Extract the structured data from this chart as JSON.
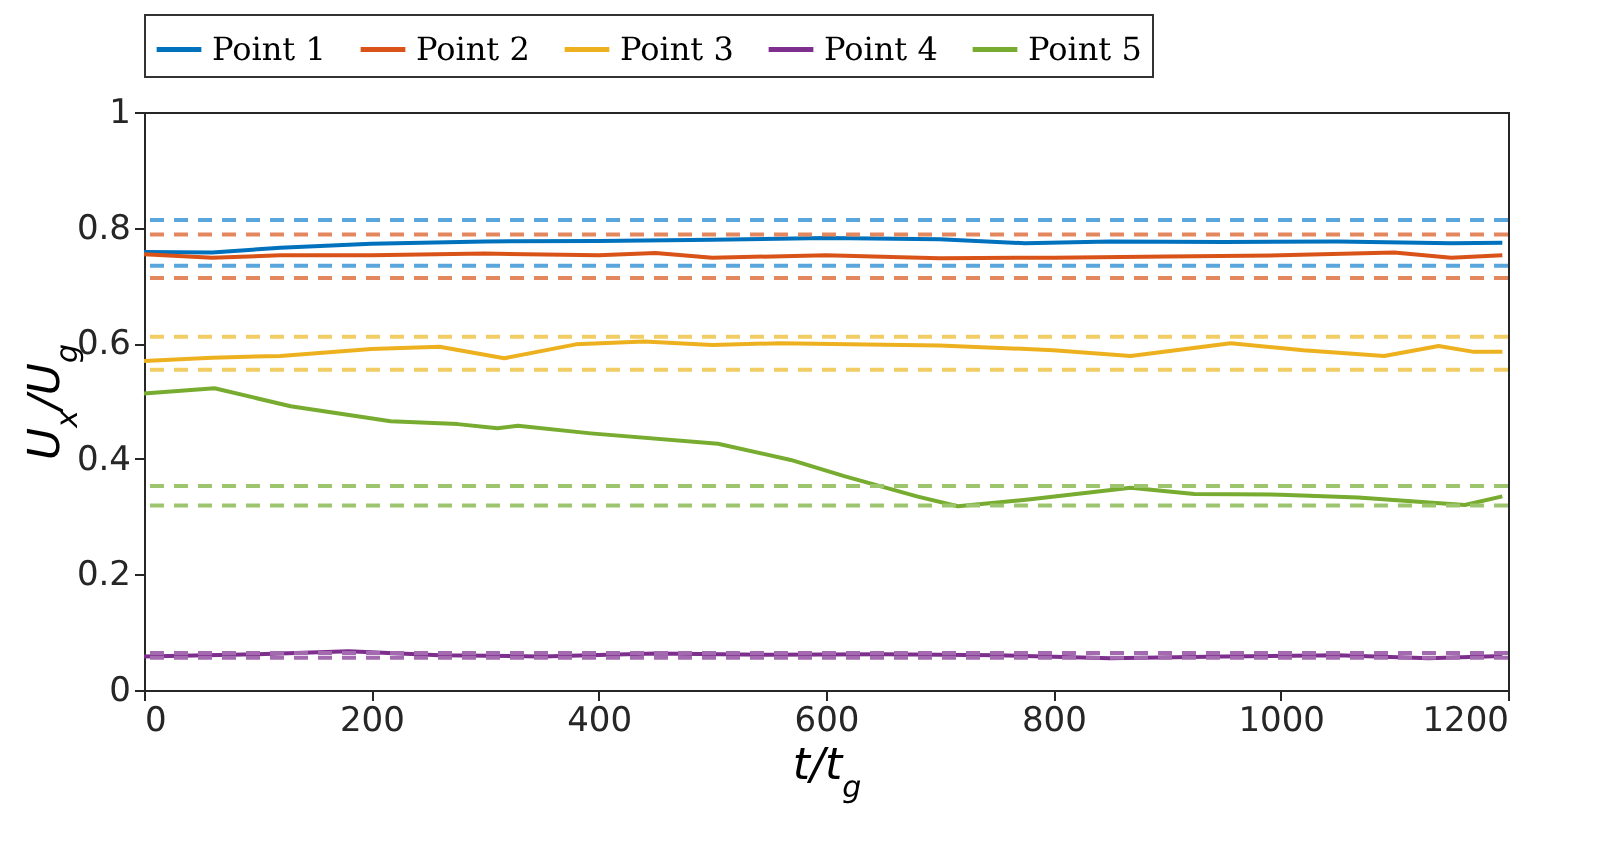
{
  "chart_data": {
    "type": "line",
    "xlabel": "t/t$_{g}$",
    "ylabel": "U$_{x}$/U$_{g}$",
    "xlim": [
      0,
      1200
    ],
    "xticks": [
      0,
      200,
      400,
      600,
      800,
      1000,
      1200
    ],
    "ylim": [
      0,
      1
    ],
    "yticks": [
      0,
      0.2,
      0.4,
      0.6,
      0.8,
      1
    ],
    "grid": false,
    "legend": "top",
    "line_style": "solid",
    "marker": "none",
    "series": [
      {
        "name": "Point 1",
        "color": "#0072bd",
        "x": [
          0,
          60,
          120,
          200,
          300,
          400,
          500,
          600,
          700,
          775,
          850,
          950,
          1050,
          1150,
          1195
        ],
        "values": [
          0.758,
          0.757,
          0.765,
          0.772,
          0.776,
          0.777,
          0.779,
          0.782,
          0.78,
          0.773,
          0.776,
          0.775,
          0.776,
          0.773,
          0.774
        ]
      },
      {
        "name": "Point 2",
        "color": "#d95319",
        "x": [
          0,
          60,
          120,
          200,
          300,
          400,
          450,
          500,
          600,
          700,
          800,
          900,
          1000,
          1100,
          1150,
          1195
        ],
        "values": [
          0.754,
          0.748,
          0.752,
          0.752,
          0.755,
          0.752,
          0.756,
          0.748,
          0.752,
          0.747,
          0.748,
          0.75,
          0.752,
          0.757,
          0.748,
          0.752
        ]
      },
      {
        "name": "Point 3",
        "color": "#edb120",
        "x": [
          0,
          60,
          120,
          200,
          260,
          317,
          380,
          440,
          500,
          560,
          620,
          700,
          800,
          868,
          956,
          1020,
          1091,
          1139,
          1170,
          1195
        ],
        "values": [
          0.569,
          0.575,
          0.578,
          0.59,
          0.594,
          0.574,
          0.598,
          0.603,
          0.597,
          0.6,
          0.598,
          0.596,
          0.588,
          0.578,
          0.6,
          0.588,
          0.578,
          0.595,
          0.585,
          0.585
        ]
      },
      {
        "name": "Point 4",
        "color": "#7e2f8e",
        "x": [
          0,
          100,
          180,
          260,
          350,
          450,
          550,
          650,
          750,
          850,
          950,
          1050,
          1130,
          1195
        ],
        "values": [
          0.058,
          0.062,
          0.067,
          0.06,
          0.058,
          0.063,
          0.061,
          0.062,
          0.06,
          0.055,
          0.058,
          0.06,
          0.055,
          0.059
        ]
      },
      {
        "name": "Point 5",
        "color": "#77ac30",
        "x": [
          0,
          62,
          129,
          217,
          276,
          311,
          329,
          393,
          505,
          569,
          616,
          680,
          716,
          780,
          868,
          924,
          1000,
          1068,
          1162,
          1195
        ],
        "values": [
          0.513,
          0.522,
          0.491,
          0.465,
          0.46,
          0.453,
          0.457,
          0.444,
          0.426,
          0.398,
          0.37,
          0.335,
          0.318,
          0.33,
          0.35,
          0.339,
          0.338,
          0.333,
          0.32,
          0.335
        ]
      }
    ],
    "ref_lines": [
      {
        "axis": "y",
        "value": 0.813,
        "color": "#5aa6dc",
        "line_style": "dashed"
      },
      {
        "axis": "y",
        "value": 0.734,
        "color": "#5aa6dc",
        "line_style": "dashed"
      },
      {
        "axis": "y",
        "value": 0.788,
        "color": "#e3875e",
        "line_style": "dashed"
      },
      {
        "axis": "y",
        "value": 0.713,
        "color": "#e3875e",
        "line_style": "dashed"
      },
      {
        "axis": "y",
        "value": 0.611,
        "color": "#f2cd66",
        "line_style": "dashed"
      },
      {
        "axis": "y",
        "value": 0.554,
        "color": "#f2cd66",
        "line_style": "dashed"
      },
      {
        "axis": "y",
        "value": 0.064,
        "color": "#a36ab0",
        "line_style": "dashed"
      },
      {
        "axis": "y",
        "value": 0.056,
        "color": "#a36ab0",
        "line_style": "dashed"
      },
      {
        "axis": "y",
        "value": 0.353,
        "color": "#9cc56e",
        "line_style": "dashed"
      },
      {
        "axis": "y",
        "value": 0.319,
        "color": "#9cc56e",
        "line_style": "dashed"
      }
    ]
  }
}
